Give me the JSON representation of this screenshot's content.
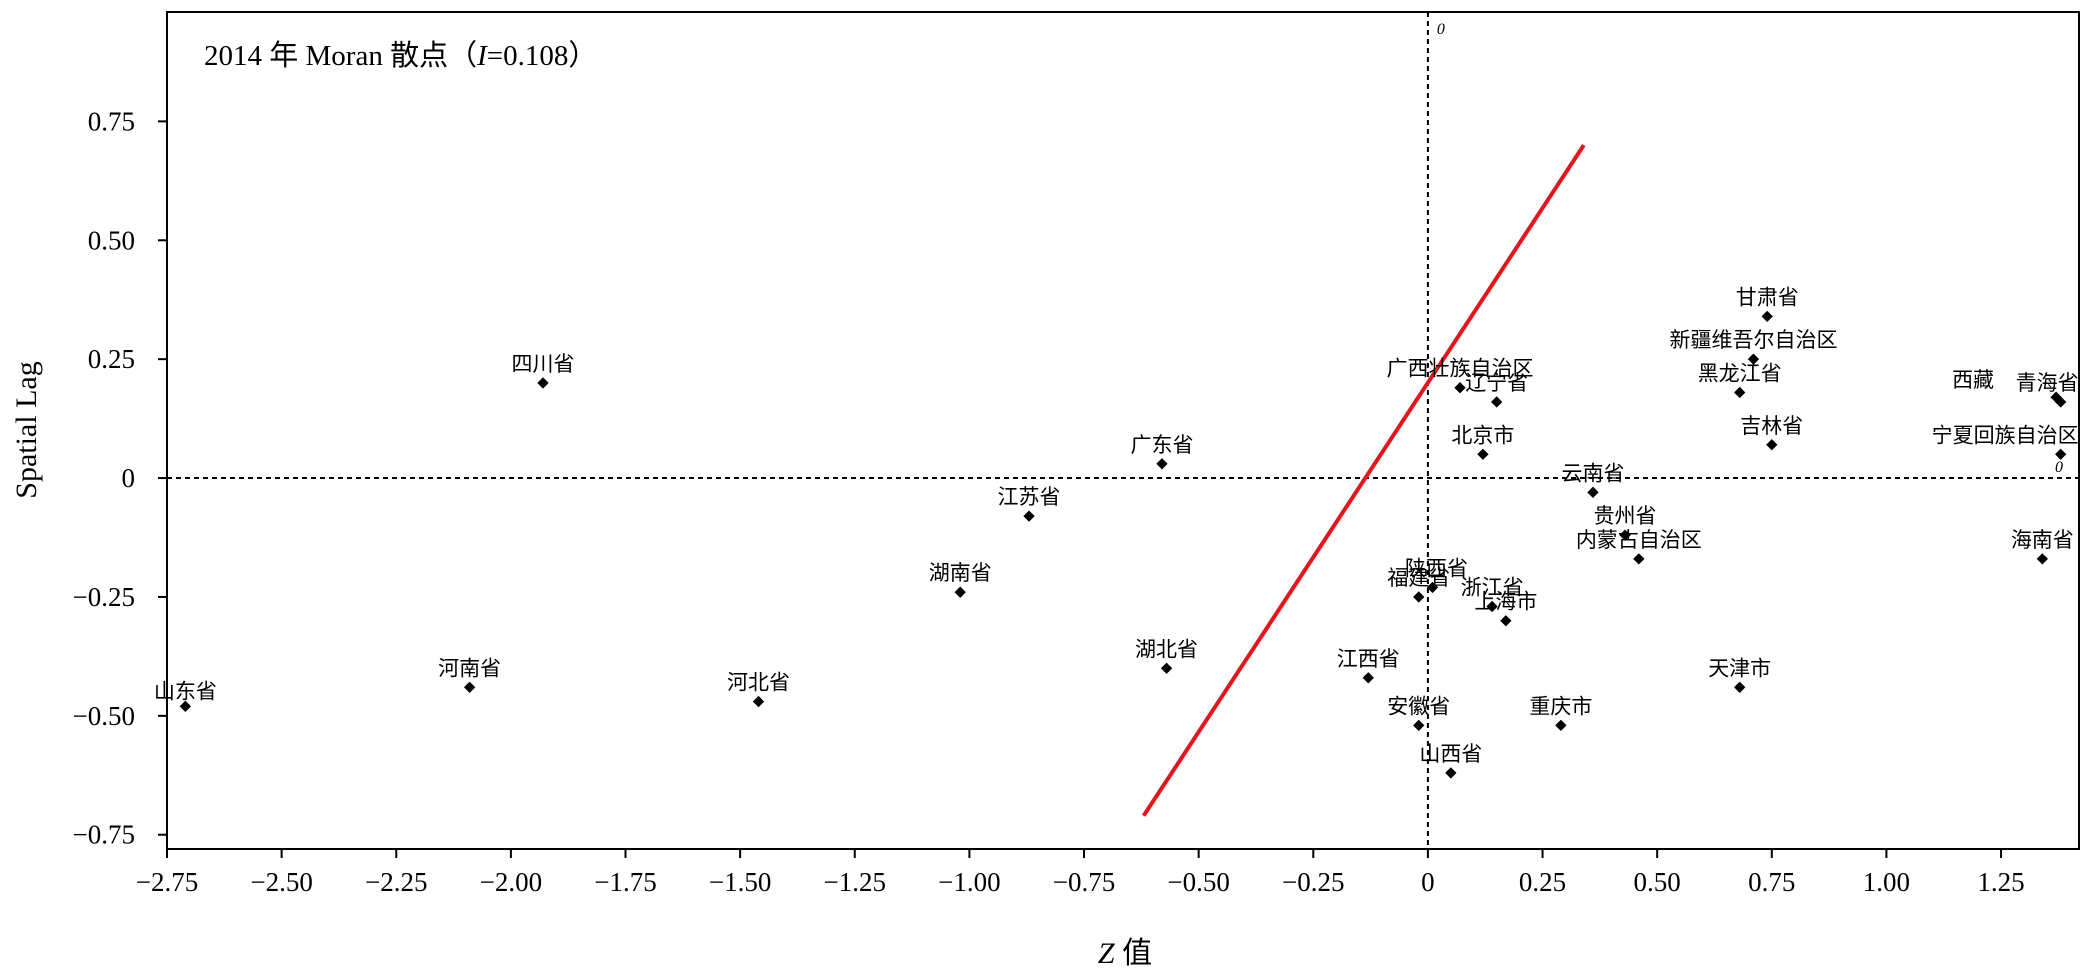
{
  "chart_data": {
    "type": "scatter",
    "title_prefix": "2014 年 Moran 散点（",
    "title_stat": "I",
    "title_suffix": "=0.108）",
    "xlabel_var": "Z",
    "xlabel_suffix": " 值",
    "ylabel": "Spatial Lag",
    "xlim": [
      -2.75,
      1.42
    ],
    "ylim": [
      -0.78,
      0.98
    ],
    "x_ticks": [
      {
        "value": -2.75,
        "label": "−2.75"
      },
      {
        "value": -2.5,
        "label": "−2.50"
      },
      {
        "value": -2.25,
        "label": "−2.25"
      },
      {
        "value": -2.0,
        "label": "−2.00"
      },
      {
        "value": -1.75,
        "label": "−1.75"
      },
      {
        "value": -1.5,
        "label": "−1.50"
      },
      {
        "value": -1.25,
        "label": "−1.25"
      },
      {
        "value": -1.0,
        "label": "−1.00"
      },
      {
        "value": -0.75,
        "label": "−0.75"
      },
      {
        "value": -0.5,
        "label": "−0.50"
      },
      {
        "value": -0.25,
        "label": "−0.25"
      },
      {
        "value": 0,
        "label": "0"
      },
      {
        "value": 0.25,
        "label": "0.25"
      },
      {
        "value": 0.5,
        "label": "0.50"
      },
      {
        "value": 0.75,
        "label": "0.75"
      },
      {
        "value": 1.0,
        "label": "1.00"
      },
      {
        "value": 1.25,
        "label": "1.25"
      }
    ],
    "y_ticks": [
      {
        "value": 0.75,
        "label": "0.75"
      },
      {
        "value": 0.5,
        "label": "0.50"
      },
      {
        "value": 0.25,
        "label": "0.25"
      },
      {
        "value": 0,
        "label": "0"
      },
      {
        "value": -0.25,
        "label": "−0.25"
      },
      {
        "value": -0.5,
        "label": "−0.50"
      },
      {
        "value": -0.75,
        "label": "−0.75"
      }
    ],
    "reference_lines": {
      "x": 0,
      "y": 0,
      "style": "dashed"
    },
    "origin_marks": [
      "0",
      "0"
    ],
    "regression_line": {
      "color": "#e8141b",
      "from": [
        -0.62,
        -0.71
      ],
      "to": [
        0.34,
        0.7
      ]
    },
    "points": [
      {
        "label": "山东省",
        "x": -2.71,
        "y": -0.48,
        "anchor": "below"
      },
      {
        "label": "河南省",
        "x": -2.09,
        "y": -0.44,
        "anchor": "above"
      },
      {
        "label": "四川省",
        "x": -1.93,
        "y": 0.2,
        "anchor": "above"
      },
      {
        "label": "河北省",
        "x": -1.46,
        "y": -0.47,
        "anchor": "above"
      },
      {
        "label": "湖南省",
        "x": -1.02,
        "y": -0.24,
        "anchor": "above"
      },
      {
        "label": "江苏省",
        "x": -0.87,
        "y": -0.08,
        "anchor": "above"
      },
      {
        "label": "广东省",
        "x": -0.58,
        "y": 0.03,
        "anchor": "above"
      },
      {
        "label": "湖北省",
        "x": -0.57,
        "y": -0.4,
        "anchor": "above"
      },
      {
        "label": "江西省",
        "x": -0.13,
        "y": -0.42,
        "anchor": "above"
      },
      {
        "label": "安徽省",
        "x": -0.02,
        "y": -0.52,
        "anchor": "above"
      },
      {
        "label": "福建省",
        "x": -0.02,
        "y": -0.25,
        "anchor": "above"
      },
      {
        "label": "陕西省",
        "x": 0.01,
        "y": -0.23,
        "anchor": "above-right"
      },
      {
        "label": "山西省",
        "x": 0.05,
        "y": -0.62,
        "anchor": "above"
      },
      {
        "label": "广西壮族自治区",
        "x": 0.07,
        "y": 0.19,
        "anchor": "above"
      },
      {
        "label": "辽宁省",
        "x": 0.15,
        "y": 0.16,
        "anchor": "above"
      },
      {
        "label": "北京市",
        "x": 0.12,
        "y": 0.05,
        "anchor": "above"
      },
      {
        "label": "浙江省",
        "x": 0.14,
        "y": -0.27,
        "anchor": "above"
      },
      {
        "label": "上海市",
        "x": 0.17,
        "y": -0.3,
        "anchor": "above"
      },
      {
        "label": "重庆市",
        "x": 0.29,
        "y": -0.52,
        "anchor": "above"
      },
      {
        "label": "云南省",
        "x": 0.36,
        "y": -0.03,
        "anchor": "above"
      },
      {
        "label": "贵州省",
        "x": 0.43,
        "y": -0.12,
        "anchor": "above"
      },
      {
        "label": "内蒙古自治区",
        "x": 0.46,
        "y": -0.17,
        "anchor": "above"
      },
      {
        "label": "天津市",
        "x": 0.68,
        "y": -0.44,
        "anchor": "above"
      },
      {
        "label": "黑龙江省",
        "x": 0.68,
        "y": 0.18,
        "anchor": "above"
      },
      {
        "label": "新疆维吾尔自治区",
        "x": 0.71,
        "y": 0.25,
        "anchor": "above"
      },
      {
        "label": "甘肃省",
        "x": 0.74,
        "y": 0.34,
        "anchor": "above"
      },
      {
        "label": "吉林省",
        "x": 0.75,
        "y": 0.07,
        "anchor": "above"
      },
      {
        "label": "海南省",
        "x": 1.34,
        "y": -0.17,
        "anchor": "above"
      },
      {
        "label": "宁夏回族自治区",
        "x": 1.38,
        "y": 0.05,
        "anchor": "above-left"
      },
      {
        "label": "西藏",
        "x": 1.37,
        "y": 0.17,
        "anchor": "above-left-far"
      },
      {
        "label": "青海省",
        "x": 1.38,
        "y": 0.16,
        "anchor": "above-left"
      }
    ]
  }
}
